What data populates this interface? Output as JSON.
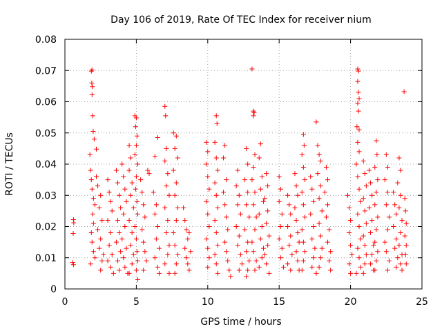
{
  "chart_data": {
    "type": "scatter",
    "title": "Day 106 of 2019, Rate Of TEC Index for receiver nium",
    "xlabel": "GPS time / hours",
    "ylabel": "ROTI / TECUs",
    "xlim": [
      0,
      25
    ],
    "ylim": [
      0,
      0.08
    ],
    "x_ticks": [
      "0",
      "5",
      "10",
      "15",
      "20",
      "25"
    ],
    "y_ticks": [
      "0",
      "0.01",
      "0.02",
      "0.03",
      "0.04",
      "0.05",
      "0.06",
      "0.07",
      "0.08"
    ],
    "grid": true,
    "marker": "plus",
    "color": "#ff0000",
    "points": [
      [
        0.55,
        0.0085
      ],
      [
        0.6,
        0.0078
      ],
      [
        0.58,
        0.0178
      ],
      [
        0.62,
        0.0212
      ],
      [
        0.6,
        0.0222
      ],
      [
        1.75,
        0.043
      ],
      [
        1.85,
        0.0698
      ],
      [
        1.9,
        0.0702
      ],
      [
        1.88,
        0.066
      ],
      [
        1.92,
        0.0648
      ],
      [
        1.9,
        0.0622
      ],
      [
        1.95,
        0.0555
      ],
      [
        1.98,
        0.0505
      ],
      [
        2.05,
        0.048
      ],
      [
        2.2,
        0.0448
      ],
      [
        1.8,
        0.038
      ],
      [
        1.85,
        0.035
      ],
      [
        1.9,
        0.032
      ],
      [
        2.0,
        0.029
      ],
      [
        2.1,
        0.027
      ],
      [
        1.95,
        0.024
      ],
      [
        2.0,
        0.021
      ],
      [
        1.85,
        0.018
      ],
      [
        1.9,
        0.015
      ],
      [
        2.0,
        0.012
      ],
      [
        2.1,
        0.01
      ],
      [
        1.8,
        0.008
      ],
      [
        2.2,
        0.036
      ],
      [
        2.3,
        0.033
      ],
      [
        2.5,
        0.03
      ],
      [
        2.4,
        0.026
      ],
      [
        2.6,
        0.022
      ],
      [
        2.3,
        0.019
      ],
      [
        2.5,
        0.016
      ],
      [
        2.4,
        0.013
      ],
      [
        2.7,
        0.011
      ],
      [
        2.6,
        0.009
      ],
      [
        2.5,
        0.006
      ],
      [
        3.0,
        0.035
      ],
      [
        3.1,
        0.031
      ],
      [
        3.2,
        0.028
      ],
      [
        3.3,
        0.025
      ],
      [
        3.0,
        0.022
      ],
      [
        3.2,
        0.018
      ],
      [
        3.1,
        0.014
      ],
      [
        3.3,
        0.011
      ],
      [
        3.0,
        0.009
      ],
      [
        3.2,
        0.007
      ],
      [
        3.4,
        0.005
      ],
      [
        3.6,
        0.038
      ],
      [
        3.7,
        0.034
      ],
      [
        3.8,
        0.03
      ],
      [
        3.9,
        0.026
      ],
      [
        3.7,
        0.022
      ],
      [
        3.8,
        0.018
      ],
      [
        3.6,
        0.015
      ],
      [
        3.9,
        0.012
      ],
      [
        3.7,
        0.009
      ],
      [
        3.8,
        0.006
      ],
      [
        4.0,
        0.04
      ],
      [
        4.1,
        0.036
      ],
      [
        4.2,
        0.032
      ],
      [
        4.3,
        0.028
      ],
      [
        4.1,
        0.024
      ],
      [
        4.2,
        0.02
      ],
      [
        4.0,
        0.016
      ],
      [
        4.3,
        0.013
      ],
      [
        4.1,
        0.01
      ],
      [
        4.2,
        0.007
      ],
      [
        4.4,
        0.005
      ],
      [
        4.5,
        0.046
      ],
      [
        4.6,
        0.042
      ],
      [
        4.5,
        0.038
      ],
      [
        4.7,
        0.034
      ],
      [
        4.6,
        0.03
      ],
      [
        4.8,
        0.026
      ],
      [
        4.5,
        0.022
      ],
      [
        4.7,
        0.018
      ],
      [
        4.6,
        0.014
      ],
      [
        4.8,
        0.011
      ],
      [
        4.7,
        0.008
      ],
      [
        4.5,
        0.005
      ],
      [
        4.9,
        0.0555
      ],
      [
        5.0,
        0.0548
      ],
      [
        4.95,
        0.052
      ],
      [
        5.05,
        0.049
      ],
      [
        5.0,
        0.046
      ],
      [
        4.9,
        0.043
      ],
      [
        5.1,
        0.04
      ],
      [
        5.0,
        0.036
      ],
      [
        4.95,
        0.032
      ],
      [
        5.05,
        0.028
      ],
      [
        5.1,
        0.024
      ],
      [
        4.9,
        0.02
      ],
      [
        5.0,
        0.016
      ],
      [
        5.05,
        0.012
      ],
      [
        5.1,
        0.009
      ],
      [
        5.0,
        0.006
      ],
      [
        5.1,
        0.003
      ],
      [
        5.3,
        0.035
      ],
      [
        5.4,
        0.031
      ],
      [
        5.5,
        0.027
      ],
      [
        5.6,
        0.023
      ],
      [
        5.4,
        0.019
      ],
      [
        5.5,
        0.015
      ],
      [
        5.6,
        0.012
      ],
      [
        5.7,
        0.009
      ],
      [
        5.5,
        0.006
      ],
      [
        5.9,
        0.037
      ],
      [
        5.8,
        0.038
      ],
      [
        6.3,
        0.0425
      ],
      [
        6.5,
        0.0485
      ],
      [
        6.2,
        0.031
      ],
      [
        6.4,
        0.027
      ],
      [
        6.3,
        0.024
      ],
      [
        6.5,
        0.02
      ],
      [
        6.4,
        0.016
      ],
      [
        6.6,
        0.013
      ],
      [
        6.3,
        0.01
      ],
      [
        6.5,
        0.007
      ],
      [
        6.6,
        0.005
      ],
      [
        7.0,
        0.0585
      ],
      [
        7.05,
        0.0555
      ],
      [
        7.1,
        0.045
      ],
      [
        7.0,
        0.041
      ],
      [
        7.2,
        0.037
      ],
      [
        7.1,
        0.033
      ],
      [
        7.3,
        0.03
      ],
      [
        7.0,
        0.026
      ],
      [
        7.2,
        0.022
      ],
      [
        7.1,
        0.018
      ],
      [
        7.3,
        0.014
      ],
      [
        7.2,
        0.011
      ],
      [
        7.0,
        0.008
      ],
      [
        7.3,
        0.005
      ],
      [
        7.6,
        0.05
      ],
      [
        7.8,
        0.049
      ],
      [
        7.7,
        0.045
      ],
      [
        7.9,
        0.042
      ],
      [
        7.6,
        0.038
      ],
      [
        7.8,
        0.034
      ],
      [
        7.7,
        0.03
      ],
      [
        7.9,
        0.026
      ],
      [
        7.8,
        0.022
      ],
      [
        7.6,
        0.018
      ],
      [
        7.7,
        0.014
      ],
      [
        7.9,
        0.011
      ],
      [
        7.8,
        0.008
      ],
      [
        7.7,
        0.005
      ],
      [
        8.3,
        0.026
      ],
      [
        8.4,
        0.022
      ],
      [
        8.5,
        0.019
      ],
      [
        8.6,
        0.016
      ],
      [
        8.4,
        0.013
      ],
      [
        8.5,
        0.01
      ],
      [
        8.6,
        0.008
      ],
      [
        8.7,
        0.006
      ],
      [
        8.8,
        0.012
      ],
      [
        8.7,
        0.018
      ],
      [
        9.9,
        0.047
      ],
      [
        10.0,
        0.044
      ],
      [
        9.9,
        0.04
      ],
      [
        10.0,
        0.036
      ],
      [
        10.1,
        0.032
      ],
      [
        9.9,
        0.028
      ],
      [
        10.0,
        0.024
      ],
      [
        10.1,
        0.02
      ],
      [
        9.9,
        0.016
      ],
      [
        10.0,
        0.013
      ],
      [
        10.1,
        0.01
      ],
      [
        10.0,
        0.007
      ],
      [
        10.6,
        0.0555
      ],
      [
        10.65,
        0.053
      ],
      [
        10.5,
        0.047
      ],
      [
        10.6,
        0.042
      ],
      [
        10.7,
        0.038
      ],
      [
        10.5,
        0.034
      ],
      [
        10.6,
        0.03
      ],
      [
        10.7,
        0.026
      ],
      [
        10.5,
        0.022
      ],
      [
        10.6,
        0.018
      ],
      [
        10.7,
        0.014
      ],
      [
        10.5,
        0.011
      ],
      [
        10.6,
        0.008
      ],
      [
        10.7,
        0.005
      ],
      [
        11.1,
        0.042
      ],
      [
        11.2,
        0.046
      ],
      [
        11.3,
        0.035
      ],
      [
        11.1,
        0.031
      ],
      [
        11.2,
        0.027
      ],
      [
        11.3,
        0.023
      ],
      [
        11.4,
        0.019
      ],
      [
        11.2,
        0.015
      ],
      [
        11.3,
        0.012
      ],
      [
        11.4,
        0.009
      ],
      [
        11.5,
        0.006
      ],
      [
        11.6,
        0.004
      ],
      [
        12.0,
        0.033
      ],
      [
        12.2,
        0.03
      ],
      [
        12.1,
        0.027
      ],
      [
        12.3,
        0.024
      ],
      [
        12.0,
        0.02
      ],
      [
        12.2,
        0.017
      ],
      [
        12.1,
        0.014
      ],
      [
        12.3,
        0.011
      ],
      [
        12.4,
        0.008
      ],
      [
        12.2,
        0.006
      ],
      [
        12.1,
        0.038
      ],
      [
        12.7,
        0.045
      ],
      [
        12.8,
        0.04
      ],
      [
        12.6,
        0.035
      ],
      [
        12.8,
        0.031
      ],
      [
        12.7,
        0.027
      ],
      [
        12.9,
        0.023
      ],
      [
        12.6,
        0.019
      ],
      [
        12.8,
        0.015
      ],
      [
        12.7,
        0.012
      ],
      [
        12.9,
        0.009
      ],
      [
        12.8,
        0.006
      ],
      [
        12.7,
        0.004
      ],
      [
        13.1,
        0.0705
      ],
      [
        13.2,
        0.057
      ],
      [
        13.25,
        0.0565
      ],
      [
        13.2,
        0.0555
      ],
      [
        13.3,
        0.043
      ],
      [
        13.2,
        0.039
      ],
      [
        13.1,
        0.035
      ],
      [
        13.3,
        0.031
      ],
      [
        13.2,
        0.027
      ],
      [
        13.4,
        0.023
      ],
      [
        13.3,
        0.019
      ],
      [
        13.1,
        0.015
      ],
      [
        13.2,
        0.012
      ],
      [
        13.4,
        0.009
      ],
      [
        13.3,
        0.006
      ],
      [
        13.7,
        0.0465
      ],
      [
        13.6,
        0.042
      ],
      [
        13.8,
        0.036
      ],
      [
        13.7,
        0.032
      ],
      [
        13.9,
        0.028
      ],
      [
        13.6,
        0.024
      ],
      [
        13.8,
        0.02
      ],
      [
        13.7,
        0.016
      ],
      [
        13.9,
        0.013
      ],
      [
        13.8,
        0.01
      ],
      [
        13.6,
        0.007
      ],
      [
        14.1,
        0.037
      ],
      [
        14.2,
        0.033
      ],
      [
        14.0,
        0.029
      ],
      [
        14.2,
        0.025
      ],
      [
        14.1,
        0.021
      ],
      [
        14.3,
        0.017
      ],
      [
        14.2,
        0.014
      ],
      [
        14.0,
        0.011
      ],
      [
        14.1,
        0.008
      ],
      [
        14.3,
        0.005
      ],
      [
        15.0,
        0.036
      ],
      [
        15.1,
        0.032
      ],
      [
        15.0,
        0.028
      ],
      [
        15.2,
        0.024
      ],
      [
        15.1,
        0.02
      ],
      [
        15.0,
        0.016
      ],
      [
        15.2,
        0.013
      ],
      [
        15.1,
        0.01
      ],
      [
        15.3,
        0.007
      ],
      [
        15.6,
        0.03
      ],
      [
        15.7,
        0.027
      ],
      [
        15.8,
        0.024
      ],
      [
        15.6,
        0.02
      ],
      [
        15.8,
        0.017
      ],
      [
        15.7,
        0.014
      ],
      [
        15.9,
        0.011
      ],
      [
        15.6,
        0.008
      ],
      [
        15.8,
        0.006
      ],
      [
        16.1,
        0.037
      ],
      [
        16.2,
        0.033
      ],
      [
        16.3,
        0.03
      ],
      [
        16.1,
        0.026
      ],
      [
        16.2,
        0.022
      ],
      [
        16.3,
        0.018
      ],
      [
        16.4,
        0.015
      ],
      [
        16.2,
        0.012
      ],
      [
        16.3,
        0.009
      ],
      [
        16.4,
        0.006
      ],
      [
        16.7,
        0.0495
      ],
      [
        16.75,
        0.046
      ],
      [
        16.6,
        0.043
      ],
      [
        16.7,
        0.039
      ],
      [
        16.8,
        0.035
      ],
      [
        16.6,
        0.031
      ],
      [
        16.7,
        0.027
      ],
      [
        16.8,
        0.023
      ],
      [
        16.6,
        0.019
      ],
      [
        16.7,
        0.015
      ],
      [
        16.8,
        0.012
      ],
      [
        16.7,
        0.009
      ],
      [
        16.6,
        0.006
      ],
      [
        17.2,
        0.036
      ],
      [
        17.3,
        0.032
      ],
      [
        17.4,
        0.028
      ],
      [
        17.2,
        0.024
      ],
      [
        17.4,
        0.02
      ],
      [
        17.3,
        0.016
      ],
      [
        17.5,
        0.013
      ],
      [
        17.4,
        0.01
      ],
      [
        17.3,
        0.007
      ],
      [
        17.6,
        0.005
      ],
      [
        17.6,
        0.0535
      ],
      [
        17.7,
        0.046
      ],
      [
        17.8,
        0.043
      ],
      [
        17.9,
        0.041
      ],
      [
        17.7,
        0.037
      ],
      [
        17.9,
        0.033
      ],
      [
        17.8,
        0.029
      ],
      [
        18.0,
        0.025
      ],
      [
        17.8,
        0.021
      ],
      [
        17.9,
        0.017
      ],
      [
        18.0,
        0.013
      ],
      [
        17.9,
        0.01
      ],
      [
        17.8,
        0.007
      ],
      [
        18.3,
        0.039
      ],
      [
        18.4,
        0.035
      ],
      [
        18.2,
        0.031
      ],
      [
        18.4,
        0.027
      ],
      [
        18.3,
        0.023
      ],
      [
        18.5,
        0.019
      ],
      [
        18.4,
        0.015
      ],
      [
        18.6,
        0.012
      ],
      [
        18.5,
        0.009
      ],
      [
        18.6,
        0.006
      ],
      [
        19.8,
        0.03
      ],
      [
        19.9,
        0.026
      ],
      [
        20.0,
        0.022
      ],
      [
        19.9,
        0.018
      ],
      [
        20.0,
        0.014
      ],
      [
        20.1,
        0.011
      ],
      [
        19.9,
        0.008
      ],
      [
        20.0,
        0.005
      ],
      [
        20.5,
        0.0705
      ],
      [
        20.55,
        0.0698
      ],
      [
        20.5,
        0.0665
      ],
      [
        20.55,
        0.063
      ],
      [
        20.6,
        0.061
      ],
      [
        20.5,
        0.0595
      ],
      [
        20.55,
        0.057
      ],
      [
        20.45,
        0.052
      ],
      [
        20.6,
        0.051
      ],
      [
        20.5,
        0.047
      ],
      [
        20.6,
        0.044
      ],
      [
        20.4,
        0.04
      ],
      [
        20.5,
        0.036
      ],
      [
        20.6,
        0.032
      ],
      [
        20.7,
        0.028
      ],
      [
        20.5,
        0.024
      ],
      [
        20.6,
        0.02
      ],
      [
        20.7,
        0.016
      ],
      [
        20.5,
        0.013
      ],
      [
        20.6,
        0.01
      ],
      [
        20.7,
        0.007
      ],
      [
        20.4,
        0.005
      ],
      [
        20.9,
        0.041
      ],
      [
        21.0,
        0.037
      ],
      [
        21.1,
        0.033
      ],
      [
        20.9,
        0.029
      ],
      [
        21.0,
        0.025
      ],
      [
        21.1,
        0.021
      ],
      [
        20.9,
        0.017
      ],
      [
        21.0,
        0.014
      ],
      [
        21.1,
        0.011
      ],
      [
        21.0,
        0.008
      ],
      [
        20.9,
        0.005
      ],
      [
        21.3,
        0.038
      ],
      [
        21.4,
        0.034
      ],
      [
        21.5,
        0.03
      ],
      [
        21.3,
        0.026
      ],
      [
        21.5,
        0.022
      ],
      [
        21.4,
        0.018
      ],
      [
        21.6,
        0.014
      ],
      [
        21.5,
        0.011
      ],
      [
        21.4,
        0.008
      ],
      [
        21.6,
        0.006
      ],
      [
        21.8,
        0.0475
      ],
      [
        21.85,
        0.043
      ],
      [
        21.7,
        0.039
      ],
      [
        21.9,
        0.035
      ],
      [
        21.8,
        0.031
      ],
      [
        21.7,
        0.027
      ],
      [
        21.9,
        0.023
      ],
      [
        21.8,
        0.019
      ],
      [
        21.7,
        0.015
      ],
      [
        21.9,
        0.012
      ],
      [
        21.8,
        0.009
      ],
      [
        21.7,
        0.006
      ],
      [
        22.5,
        0.043
      ],
      [
        22.6,
        0.039
      ],
      [
        22.4,
        0.035
      ],
      [
        22.6,
        0.031
      ],
      [
        22.5,
        0.027
      ],
      [
        22.7,
        0.023
      ],
      [
        22.6,
        0.019
      ],
      [
        22.4,
        0.015
      ],
      [
        22.5,
        0.012
      ],
      [
        22.7,
        0.009
      ],
      [
        22.6,
        0.006
      ],
      [
        23.0,
        0.031
      ],
      [
        23.1,
        0.027
      ],
      [
        23.2,
        0.024
      ],
      [
        23.0,
        0.02
      ],
      [
        23.2,
        0.016
      ],
      [
        23.1,
        0.013
      ],
      [
        23.3,
        0.01
      ],
      [
        23.2,
        0.007
      ],
      [
        23.4,
        0.042
      ],
      [
        23.5,
        0.038
      ],
      [
        23.3,
        0.034
      ],
      [
        23.5,
        0.03
      ],
      [
        23.4,
        0.026
      ],
      [
        23.6,
        0.022
      ],
      [
        23.5,
        0.018
      ],
      [
        23.4,
        0.014
      ],
      [
        23.6,
        0.011
      ],
      [
        23.5,
        0.008
      ],
      [
        23.6,
        0.006
      ],
      [
        23.75,
        0.0632
      ],
      [
        23.8,
        0.029
      ],
      [
        23.85,
        0.025
      ],
      [
        23.9,
        0.021
      ],
      [
        23.8,
        0.017
      ],
      [
        23.9,
        0.014
      ],
      [
        23.85,
        0.011
      ],
      [
        23.9,
        0.008
      ]
    ]
  }
}
